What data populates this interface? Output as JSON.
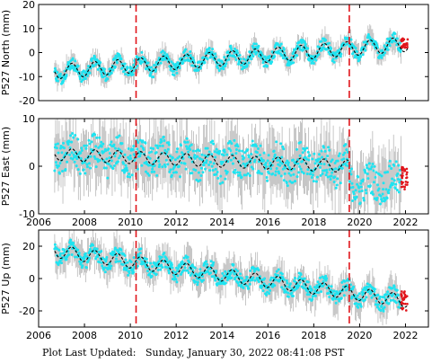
{
  "footer": {
    "label": "Plot Last Updated:",
    "timestamp": "Sunday, January 30, 2022 08:41:08 PST"
  },
  "colors": {
    "errorbar": "#b8b8b8",
    "observed": "#1fe3f0",
    "recent": "#e0151b",
    "model": "#000000",
    "event_line": "#e0151b"
  },
  "chart_data": [
    {
      "type": "scatter",
      "ylabel": "P527 North (mm)",
      "xlim": [
        2006,
        2023
      ],
      "ylim": [
        -20,
        20
      ],
      "yticks": [
        -20,
        -10,
        0,
        10,
        20
      ],
      "xticks": [
        2006,
        2008,
        2010,
        2012,
        2014,
        2016,
        2018,
        2020,
        2022
      ],
      "x_tick_labels_shown": false,
      "event_lines_x": [
        2010.25,
        2019.55
      ],
      "trend": {
        "start_year": 2006.7,
        "end_year": 2022.1,
        "start_value": -8,
        "end_value": 3.5
      },
      "seasonal_amplitude": 3,
      "scatter_halfwidth": 2.5,
      "errorbar_halfwidth": 3.5,
      "recent_points": {
        "start_year": 2021.8,
        "end_year": 2022.1,
        "values": [
          2,
          6
        ]
      },
      "grid": false,
      "legend": "none"
    },
    {
      "type": "scatter",
      "ylabel": "P527 East (mm)",
      "xlim": [
        2006,
        2023
      ],
      "ylim": [
        -10,
        10
      ],
      "yticks": [
        -10,
        0,
        10
      ],
      "xticks": [
        2006,
        2008,
        2010,
        2012,
        2014,
        2016,
        2018,
        2020,
        2022
      ],
      "x_tick_labels_shown": true,
      "event_lines_x": [
        2010.25,
        2019.55
      ],
      "trend": {
        "start_year": 2006.7,
        "end_year": 2019.55,
        "start_value": 2.5,
        "end_value": 0
      },
      "post_offset_trend": {
        "start_year": 2019.55,
        "end_year": 2022.1,
        "start_value": -4,
        "end_value": -3
      },
      "seasonal_amplitude": 1.3,
      "scatter_halfwidth": 3.5,
      "errorbar_halfwidth": 5,
      "recent_points": {
        "start_year": 2021.8,
        "end_year": 2022.1,
        "values": [
          -5,
          0
        ]
      },
      "grid": false,
      "legend": "none"
    },
    {
      "type": "scatter",
      "ylabel": "P527 Up (mm)",
      "xlim": [
        2006,
        2023
      ],
      "ylim": [
        -30,
        30
      ],
      "yticks": [
        -20,
        0,
        20
      ],
      "xticks": [
        2006,
        2008,
        2010,
        2012,
        2014,
        2016,
        2018,
        2020,
        2022
      ],
      "x_tick_labels_shown": true,
      "event_lines_x": [
        2010.25,
        2019.55
      ],
      "trend": {
        "start_year": 2006.7,
        "end_year": 2022.1,
        "start_value": 17,
        "end_value": -14
      },
      "seasonal_amplitude": 4,
      "scatter_halfwidth": 5,
      "errorbar_halfwidth": 8,
      "recent_points": {
        "start_year": 2021.8,
        "end_year": 2022.1,
        "values": [
          -20,
          -8
        ]
      },
      "grid": false,
      "legend": "none"
    }
  ]
}
